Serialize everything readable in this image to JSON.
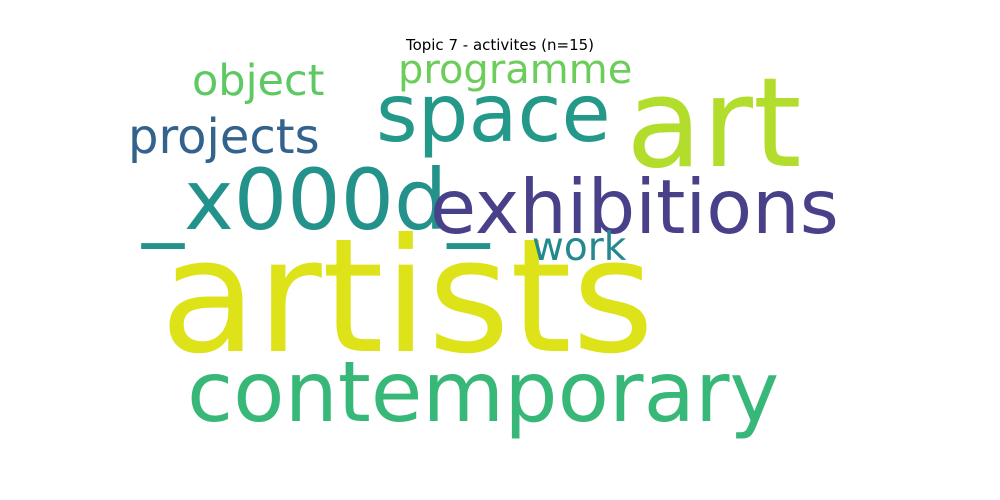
{
  "title": "Topic 7 - activites (n=15)",
  "words": [
    {
      "id": "artists",
      "text": "artists",
      "color": "#dde318"
    },
    {
      "id": "contemporary",
      "text": "contemporary",
      "color": "#37b878"
    },
    {
      "id": "art",
      "text": "art",
      "color": "#b2dd2d"
    },
    {
      "id": "space",
      "text": "space",
      "color": "#24998a"
    },
    {
      "id": "x000d",
      "text": "_x000d_",
      "color": "#23928b"
    },
    {
      "id": "exhibitions",
      "text": "exhibitions",
      "color": "#48418a"
    },
    {
      "id": "projects",
      "text": "projects",
      "color": "#33628d"
    },
    {
      "id": "object",
      "text": "object",
      "color": "#5ec962"
    },
    {
      "id": "programme",
      "text": "programme",
      "color": "#6ccd5a"
    },
    {
      "id": "work",
      "text": "work",
      "color": "#23898e"
    }
  ]
}
